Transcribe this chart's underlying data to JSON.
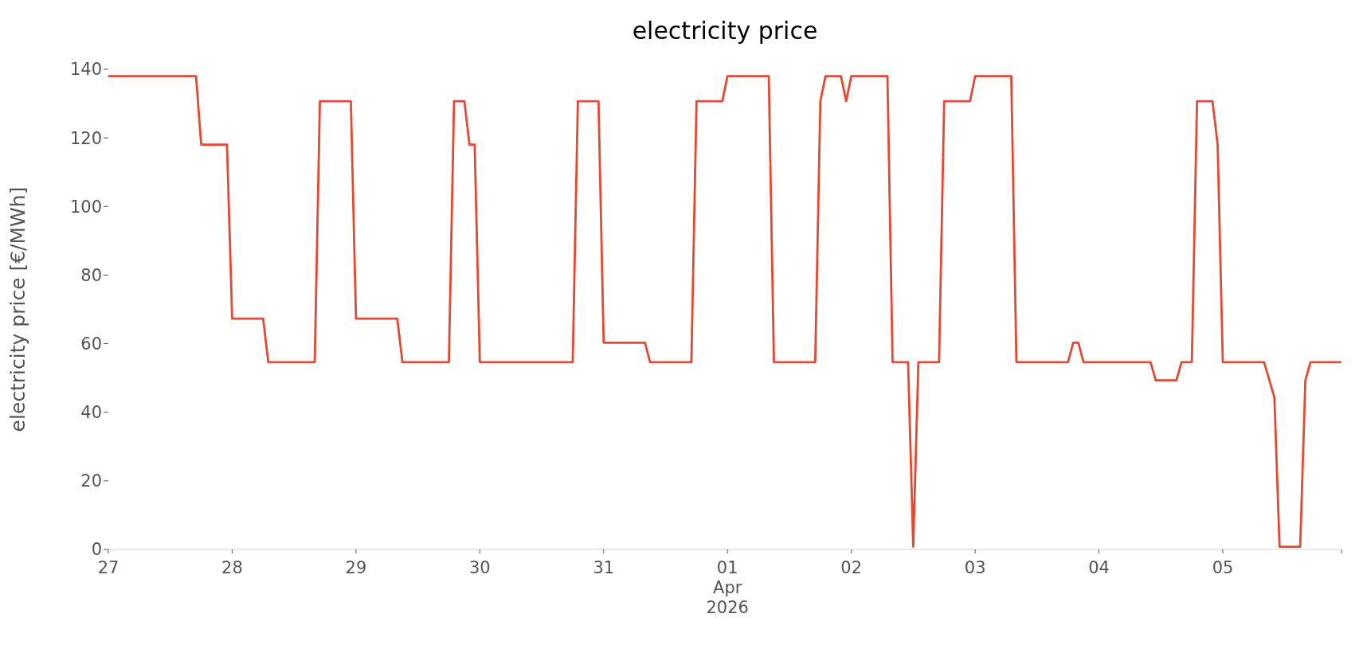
{
  "chart_data": {
    "type": "line",
    "title": "electricity price",
    "ylabel": "electricity price [€/MWh]",
    "x": [
      "2026-03-27T00:00",
      "2026-03-27T17:00",
      "2026-03-27T18:00",
      "2026-03-27T23:00",
      "2026-03-28T00:00",
      "2026-03-28T06:00",
      "2026-03-28T07:00",
      "2026-03-28T16:00",
      "2026-03-28T17:00",
      "2026-03-28T23:00",
      "2026-03-29T00:00",
      "2026-03-29T08:00",
      "2026-03-29T09:00",
      "2026-03-29T18:00",
      "2026-03-29T19:00",
      "2026-03-29T21:00",
      "2026-03-29T22:00",
      "2026-03-29T23:00",
      "2026-03-30T00:00",
      "2026-03-30T18:00",
      "2026-03-30T19:00",
      "2026-03-30T23:00",
      "2026-03-31T00:00",
      "2026-03-31T08:00",
      "2026-03-31T09:00",
      "2026-03-31T17:00",
      "2026-03-31T18:00",
      "2026-03-31T23:00",
      "2026-04-01T00:00",
      "2026-04-01T08:00",
      "2026-04-01T09:00",
      "2026-04-01T17:00",
      "2026-04-01T18:00",
      "2026-04-01T19:00",
      "2026-04-01T22:00",
      "2026-04-01T23:00",
      "2026-04-02T00:00",
      "2026-04-02T07:00",
      "2026-04-02T08:00",
      "2026-04-02T11:00",
      "2026-04-02T12:00",
      "2026-04-02T13:00",
      "2026-04-02T17:00",
      "2026-04-02T18:00",
      "2026-04-02T23:00",
      "2026-04-03T00:00",
      "2026-04-03T07:00",
      "2026-04-03T08:00",
      "2026-04-03T18:00",
      "2026-04-03T19:00",
      "2026-04-03T20:00",
      "2026-04-03T21:00",
      "2026-04-04T10:00",
      "2026-04-04T11:00",
      "2026-04-04T15:00",
      "2026-04-04T16:00",
      "2026-04-04T18:00",
      "2026-04-04T19:00",
      "2026-04-04T22:00",
      "2026-04-04T23:00",
      "2026-04-05T00:00",
      "2026-04-05T08:00",
      "2026-04-05T10:00",
      "2026-04-05T11:00",
      "2026-04-05T15:00",
      "2026-04-05T16:00",
      "2026-04-05T17:00",
      "2026-04-05T23:00"
    ],
    "series": [
      {
        "color": "#e24a33",
        "values": [
          138,
          138,
          118,
          118,
          67.3,
          67.3,
          54.6,
          54.6,
          130.7,
          130.7,
          67.3,
          67.3,
          54.6,
          54.6,
          130.7,
          130.7,
          118,
          118,
          54.6,
          54.6,
          130.7,
          130.7,
          60.3,
          60.3,
          54.6,
          54.6,
          130.7,
          130.7,
          138,
          138,
          54.6,
          54.6,
          130.7,
          138,
          138,
          130.7,
          138,
          138,
          54.6,
          54.6,
          0.8,
          54.6,
          54.6,
          130.7,
          130.7,
          138,
          138,
          54.6,
          54.6,
          60.3,
          60.3,
          54.6,
          54.6,
          49.3,
          49.3,
          54.6,
          54.6,
          130.7,
          130.7,
          118,
          54.6,
          54.6,
          44.3,
          0.8,
          0.8,
          49.3,
          54.6,
          54.6
        ]
      }
    ],
    "xticks": [
      {
        "value": "2026-03-27",
        "label": "27"
      },
      {
        "value": "2026-03-28",
        "label": "28"
      },
      {
        "value": "2026-03-29",
        "label": "29"
      },
      {
        "value": "2026-03-30",
        "label": "30"
      },
      {
        "value": "2026-03-31",
        "label": "31"
      },
      {
        "value": "2026-04-01",
        "label": "01\nApr\n2026"
      },
      {
        "value": "2026-04-02",
        "label": "02"
      },
      {
        "value": "2026-04-03",
        "label": "03"
      },
      {
        "value": "2026-04-04",
        "label": "04"
      },
      {
        "value": "2026-04-05",
        "label": "05"
      },
      {
        "value": "2026-04-05T23:00",
        "label": null
      }
    ],
    "xlim": [
      "2026-03-27",
      "2026-04-05T23:00"
    ],
    "ylim": [
      0,
      140
    ],
    "yticks": [
      0,
      20,
      40,
      60,
      80,
      100,
      120,
      140
    ],
    "line_style": "solid",
    "marker": "none"
  }
}
